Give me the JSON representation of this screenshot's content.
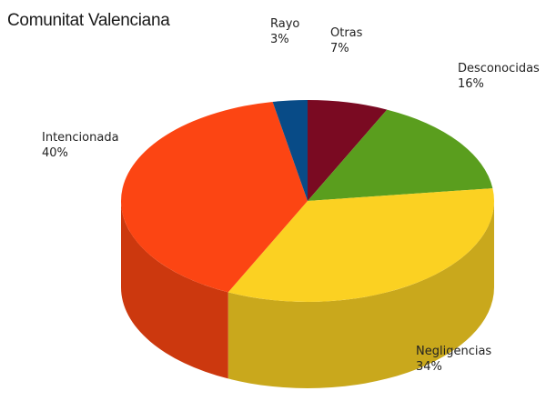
{
  "chart_data": {
    "type": "pie",
    "title": "Comunitat Valenciana",
    "slices": [
      {
        "label": "Otras",
        "value": 7,
        "pct_label": "7%",
        "color": "#7a0a22",
        "side_color": "#5c0719"
      },
      {
        "label": "Desconocidas",
        "value": 16,
        "pct_label": "16%",
        "color": "#5a9e1e",
        "side_color": "#437816"
      },
      {
        "label": "Negligencias",
        "value": 34,
        "pct_label": "34%",
        "color": "#fbd122",
        "side_color": "#c9a81c"
      },
      {
        "label": "Intencionada",
        "value": 40,
        "pct_label": "40%",
        "color": "#fc4513",
        "side_color": "#cc380e"
      },
      {
        "label": "Rayo",
        "value": 3,
        "pct_label": "3%",
        "color": "#084b87",
        "side_color": "#063a68"
      }
    ],
    "legend": "none"
  }
}
